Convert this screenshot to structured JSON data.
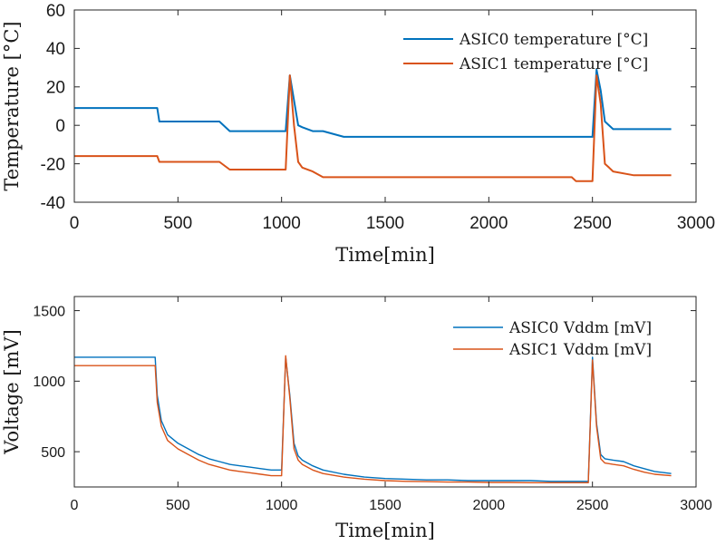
{
  "chart_data": [
    {
      "type": "line",
      "title": "",
      "xlabel": "Time[min]",
      "ylabel": "Temperature [°C]",
      "xlim": [
        0,
        3000
      ],
      "ylim": [
        -40,
        60
      ],
      "xticks": [
        0,
        500,
        1000,
        1500,
        2000,
        2500,
        3000
      ],
      "yticks": [
        -40,
        -20,
        0,
        20,
        40,
        60
      ],
      "legend_position": "top-right",
      "grid": false,
      "series": [
        {
          "name": "ASIC0 temperature [°C]",
          "color": "#0072BD",
          "x": [
            0,
            100,
            200,
            300,
            400,
            410,
            500,
            600,
            700,
            750,
            800,
            900,
            950,
            1000,
            1020,
            1040,
            1060,
            1080,
            1100,
            1150,
            1200,
            1300,
            1400,
            1500,
            1600,
            1700,
            1800,
            1900,
            2000,
            2100,
            2200,
            2300,
            2400,
            2420,
            2500,
            2520,
            2540,
            2560,
            2580,
            2600,
            2700,
            2800,
            2880
          ],
          "y": [
            9,
            9,
            9,
            9,
            9,
            2,
            2,
            2,
            2,
            -3,
            -3,
            -3,
            -3,
            -3,
            -3,
            26,
            13,
            0,
            -1,
            -3,
            -3,
            -6,
            -6,
            -6,
            -6,
            -6,
            -6,
            -6,
            -6,
            -6,
            -6,
            -6,
            -6,
            -6,
            -6,
            29,
            18,
            2,
            0,
            -2,
            -2,
            -2,
            -2
          ]
        },
        {
          "name": "ASIC1 temperature [°C]",
          "color": "#D95319",
          "x": [
            0,
            100,
            200,
            300,
            400,
            410,
            500,
            600,
            700,
            750,
            800,
            900,
            950,
            1000,
            1020,
            1040,
            1060,
            1080,
            1100,
            1150,
            1200,
            1300,
            1400,
            1500,
            1600,
            1700,
            1800,
            1900,
            2000,
            2100,
            2200,
            2300,
            2400,
            2420,
            2500,
            2520,
            2540,
            2560,
            2580,
            2600,
            2700,
            2800,
            2880
          ],
          "y": [
            -16,
            -16,
            -16,
            -16,
            -16,
            -19,
            -19,
            -19,
            -19,
            -23,
            -23,
            -23,
            -23,
            -23,
            -23,
            26,
            0,
            -19,
            -22,
            -24,
            -27,
            -27,
            -27,
            -27,
            -27,
            -27,
            -27,
            -27,
            -27,
            -27,
            -27,
            -27,
            -27,
            -29,
            -29,
            26,
            11,
            -20,
            -22,
            -24,
            -26,
            -26,
            -26
          ]
        }
      ]
    },
    {
      "type": "line",
      "title": "",
      "xlabel": "Time[min]",
      "ylabel": "Voltage [mV]",
      "xlim": [
        0,
        3000
      ],
      "ylim": [
        250,
        1600
      ],
      "xticks": [
        0,
        500,
        1000,
        1500,
        2000,
        2500,
        3000
      ],
      "yticks": [
        500,
        1000,
        1500
      ],
      "legend_position": "top-right",
      "grid": false,
      "series": [
        {
          "name": "ASIC0 Vddm [mV]",
          "color": "#0072BD",
          "x": [
            0,
            100,
            200,
            300,
            390,
            400,
            420,
            450,
            500,
            550,
            600,
            650,
            700,
            750,
            800,
            850,
            900,
            950,
            1000,
            1020,
            1040,
            1060,
            1080,
            1100,
            1150,
            1200,
            1300,
            1400,
            1500,
            1600,
            1700,
            1800,
            1900,
            2000,
            2100,
            2200,
            2300,
            2400,
            2480,
            2500,
            2520,
            2540,
            2560,
            2600,
            2650,
            2700,
            2750,
            2800,
            2880
          ],
          "y": [
            1170,
            1170,
            1170,
            1170,
            1170,
            900,
            720,
            620,
            560,
            520,
            480,
            450,
            430,
            410,
            400,
            390,
            380,
            370,
            370,
            1170,
            900,
            560,
            470,
            440,
            400,
            370,
            340,
            320,
            310,
            305,
            300,
            300,
            295,
            295,
            295,
            295,
            290,
            290,
            290,
            1170,
            700,
            480,
            450,
            440,
            430,
            400,
            380,
            360,
            345
          ]
        },
        {
          "name": "ASIC1 Vddm [mV]",
          "color": "#D95319",
          "x": [
            0,
            100,
            200,
            300,
            390,
            400,
            420,
            450,
            500,
            550,
            600,
            650,
            700,
            750,
            800,
            850,
            900,
            950,
            1000,
            1020,
            1040,
            1060,
            1080,
            1100,
            1150,
            1200,
            1300,
            1400,
            1500,
            1600,
            1700,
            1800,
            1900,
            2000,
            2100,
            2200,
            2300,
            2400,
            2480,
            2500,
            2520,
            2540,
            2560,
            2600,
            2650,
            2700,
            2750,
            2800,
            2880
          ],
          "y": [
            1110,
            1110,
            1110,
            1110,
            1110,
            850,
            680,
            580,
            520,
            480,
            440,
            410,
            390,
            370,
            360,
            350,
            340,
            330,
            330,
            1180,
            880,
            520,
            440,
            410,
            370,
            345,
            320,
            305,
            295,
            290,
            288,
            285,
            285,
            282,
            282,
            280,
            280,
            280,
            280,
            1150,
            680,
            450,
            420,
            410,
            400,
            375,
            355,
            340,
            330
          ]
        }
      ]
    }
  ]
}
